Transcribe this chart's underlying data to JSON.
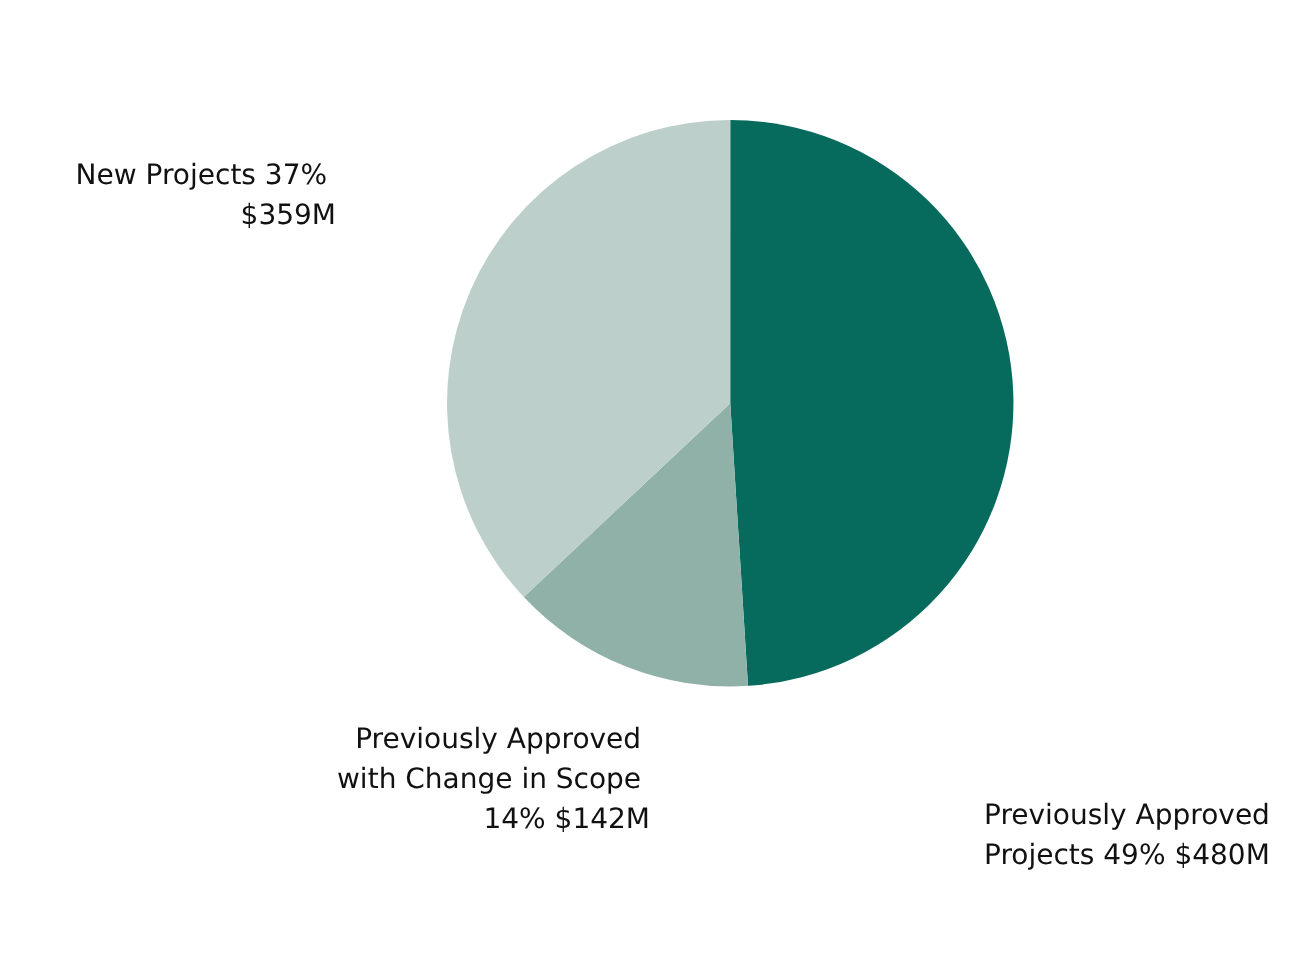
{
  "chart_data": {
    "type": "pie",
    "categories": [
      "Previously Approved Projects",
      "Previously Approved with Change in Scope",
      "New Projects"
    ],
    "values": [
      49,
      14,
      37
    ],
    "value_labels": [
      "49% $480M",
      "14% $142M",
      "37% $359M"
    ],
    "colors": [
      "#066a5c",
      "#8fb1a8",
      "#bccfca"
    ],
    "legend": false
  }
}
